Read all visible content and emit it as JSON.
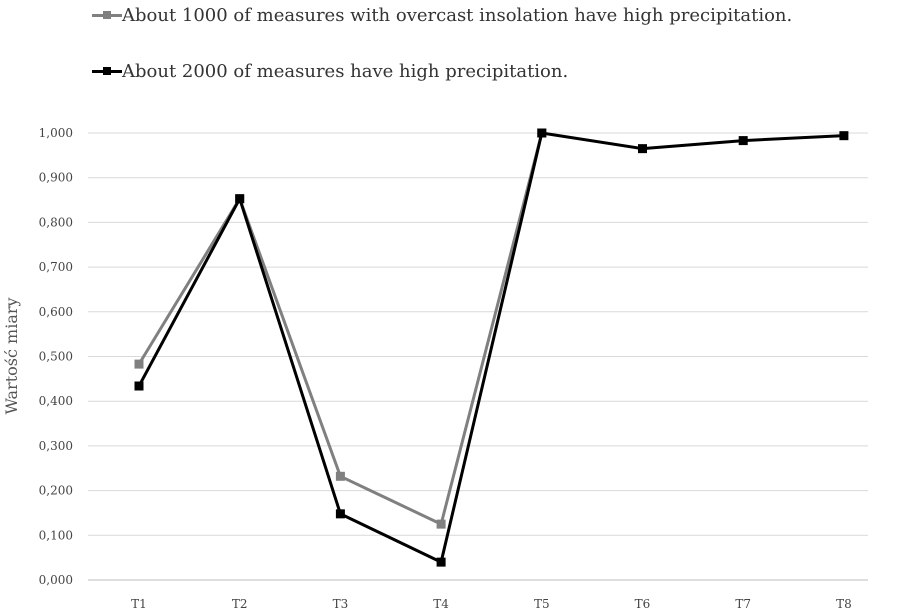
{
  "chart_data": {
    "type": "line",
    "title": "",
    "xlabel": "",
    "ylabel": "Wartość miary",
    "categories": [
      "T1",
      "T2",
      "T3",
      "T4",
      "T5",
      "T6",
      "T7",
      "T8"
    ],
    "ylim": [
      0,
      1
    ],
    "yticks": [
      "0,000",
      "0,100",
      "0,200",
      "0,300",
      "0,400",
      "0,500",
      "0,600",
      "0,700",
      "0,800",
      "0,900",
      "1,000"
    ],
    "grid": true,
    "legend_position": "top-left",
    "series": [
      {
        "name": "About 1000 of measures with overcast insolation have high precipitation.",
        "color": "#808080",
        "values": [
          0.483,
          0.853,
          0.232,
          0.125,
          1.0,
          null,
          null,
          null
        ]
      },
      {
        "name": "About 2000 of measures have high precipitation.",
        "color": "#000000",
        "values": [
          0.434,
          0.853,
          0.148,
          0.04,
          1.0,
          0.965,
          0.983,
          0.994
        ]
      }
    ]
  }
}
